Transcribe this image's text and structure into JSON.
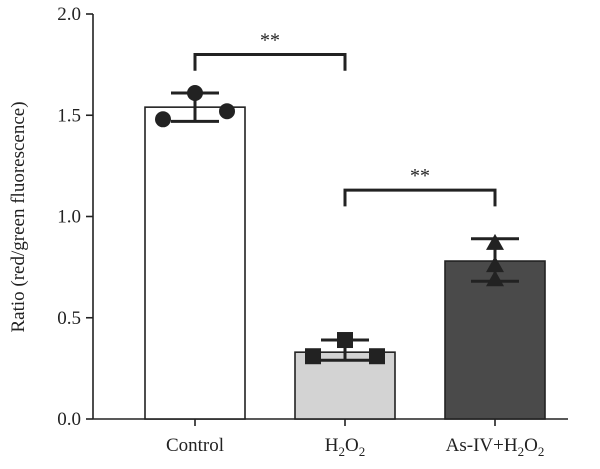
{
  "chart_data": {
    "type": "bar",
    "ylabel": "Ratio (red/green fluorescence)",
    "ylim": [
      0,
      2.0
    ],
    "yticks": [
      "0.0",
      "0.5",
      "1.0",
      "1.5",
      "2.0"
    ],
    "grid": false,
    "categories": [
      {
        "id": "control",
        "parts": [
          {
            "t": "Control",
            "sub": false
          }
        ]
      },
      {
        "id": "h2o2",
        "parts": [
          {
            "t": "H",
            "sub": false
          },
          {
            "t": "2",
            "sub": true
          },
          {
            "t": "O",
            "sub": false
          },
          {
            "t": "2",
            "sub": true
          }
        ]
      },
      {
        "id": "asiv-h2o2",
        "parts": [
          {
            "t": "As-IV+H",
            "sub": false
          },
          {
            "t": "2",
            "sub": true
          },
          {
            "t": "O",
            "sub": false
          },
          {
            "t": "2",
            "sub": true
          }
        ]
      }
    ],
    "bars": [
      {
        "mean": 1.54,
        "err_low": 1.47,
        "err_high": 1.61,
        "fill": "#ffffff",
        "marker": "circle",
        "points": [
          1.61,
          1.48,
          1.52
        ]
      },
      {
        "mean": 0.33,
        "err_low": 0.29,
        "err_high": 0.39,
        "fill": "#d3d3d3",
        "marker": "square",
        "points": [
          0.39,
          0.31,
          0.31
        ]
      },
      {
        "mean": 0.78,
        "err_low": 0.68,
        "err_high": 0.89,
        "fill": "#4a4a4a",
        "marker": "triangle",
        "points": [
          0.87,
          0.76,
          0.69
        ]
      }
    ],
    "significance": [
      {
        "from": 0,
        "to": 1,
        "y": 1.8,
        "drop": 0.08,
        "label": "**"
      },
      {
        "from": 1,
        "to": 2,
        "y": 1.13,
        "drop": 0.08,
        "label": "**"
      }
    ]
  }
}
